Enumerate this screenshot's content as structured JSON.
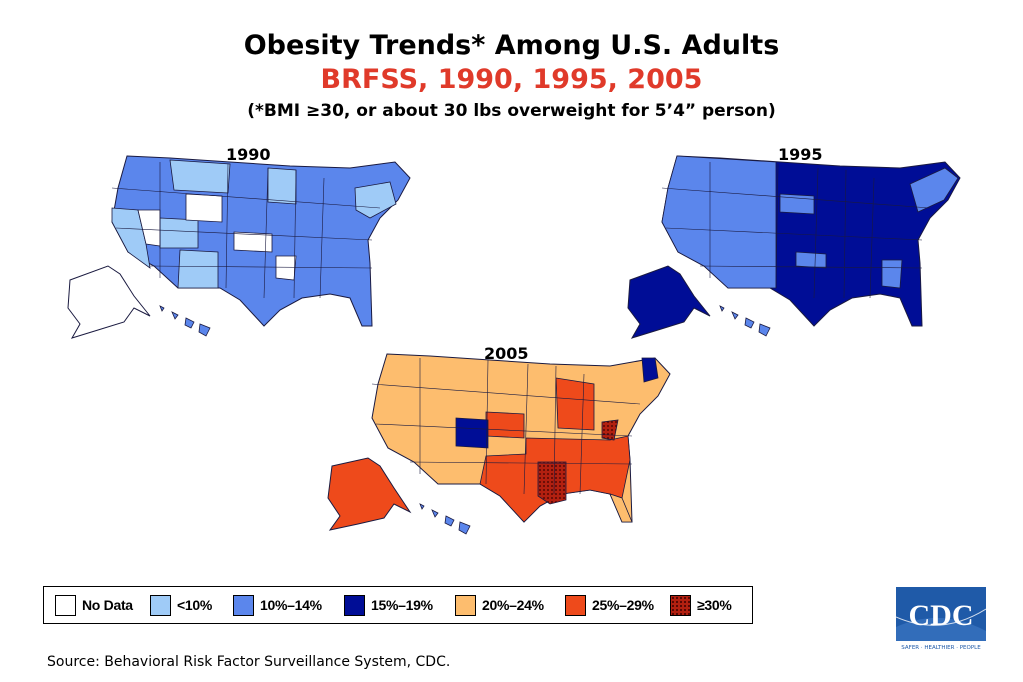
{
  "title": "Obesity Trends* Among U.S. Adults",
  "subtitle": "BRFSS, 1990, 1995, 2005",
  "note": "(*BMI ≥30, or about 30 lbs overweight for 5’4” person)",
  "maps": [
    {
      "year": "1990",
      "dominant_category": "10%–14%"
    },
    {
      "year": "1995",
      "dominant_category": "15%–19%"
    },
    {
      "year": "2005",
      "dominant_category": "20%–24%"
    }
  ],
  "legend": [
    {
      "label": "No Data",
      "color": "#ffffff"
    },
    {
      "label": "<10%",
      "color": "#9fcbf7"
    },
    {
      "label": "10%–14%",
      "color": "#5b86ec"
    },
    {
      "label": "15%–19%",
      "color": "#000d96"
    },
    {
      "label": "20%–24%",
      "color": "#fdbd6e"
    },
    {
      "label": "25%–29%",
      "color": "#ee4a1b"
    },
    {
      "label": "≥30%",
      "color": "#b22010"
    }
  ],
  "source": "Source: Behavioral Risk Factor Surveillance System, CDC.",
  "logo": {
    "text": "CDC",
    "tagline": "SAFER · HEALTHIER · PEOPLE",
    "color": "#1f5aa8"
  }
}
